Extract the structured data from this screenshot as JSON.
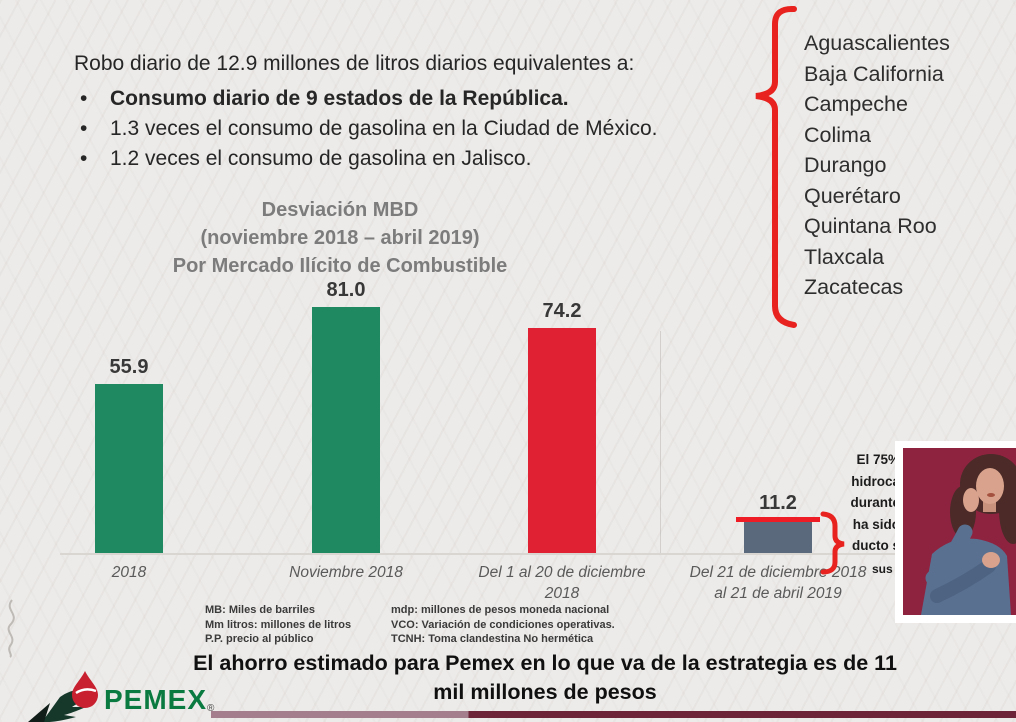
{
  "header": {
    "intro": "Robo diario de 12.9 millones de litros diarios equivalentes a:",
    "bullets": [
      {
        "text": "Consumo diario de 9 estados de la República.",
        "bold": true
      },
      {
        "text": "1.3 veces el consumo de gasolina en la Ciudad de México.",
        "bold": false
      },
      {
        "text": "1.2 veces el consumo de gasolina en Jalisco.",
        "bold": false
      }
    ]
  },
  "states": {
    "items": [
      "Aguascalientes",
      "Baja California",
      "Campeche",
      "Colima",
      "Durango",
      "Querétaro",
      "Quintana Roo",
      "Tlaxcala",
      "Zacatecas"
    ]
  },
  "chart_data": {
    "type": "bar",
    "title": "Desviación MBD",
    "subtitle": "(noviembre 2018 – abril  2019)",
    "subtitle2": "Por Mercado Ilícito de Combustible",
    "categories": [
      "2018",
      "Noviembre 2018",
      "Del 1 al 20 de diciembre 2018",
      "Del 21 de diciembre 2018 al 21 de abril 2019"
    ],
    "category_lines": [
      [
        "2018"
      ],
      [
        "Noviembre 2018"
      ],
      [
        "Del 1 al 20 de diciembre",
        "2018"
      ],
      [
        "Del 21 de diciembre 2018",
        "al 21 de abril 2019"
      ]
    ],
    "values": [
      55.9,
      81.0,
      74.2,
      11.2
    ],
    "value_labels": [
      "55.9",
      "81.0",
      "74.2",
      "11.2"
    ],
    "bar_colors": [
      "#1f8a62",
      "#1f8a62",
      "#df2133",
      "#5a6a7c"
    ],
    "ylim": [
      0,
      90
    ],
    "grid": false,
    "legend": false,
    "units": "MBD",
    "annotations": [
      {
        "target": "bar-4",
        "type": "highlight-line",
        "color": "#ee1c25"
      },
      {
        "target": "bar-4",
        "type": "brace-right",
        "color": "#e8231f"
      },
      {
        "target": "states-list",
        "type": "brace-left",
        "color": "#e8231f"
      }
    ]
  },
  "side_note": {
    "visible_fragments": [
      "El 75%",
      "hidroca",
      "durante",
      "ha sido",
      "ducto s"
    ],
    "superscript_fragment": "sus"
  },
  "footnotes": {
    "left": [
      "MB: Miles de barriles",
      "Mm litros: millones de litros",
      "P.P. precio al público"
    ],
    "right": [
      "mdp: millones de pesos moneda nacional",
      "VCO: Variación de condiciones operativas.",
      "TCNH: Toma clandestina No hermética"
    ]
  },
  "statement": {
    "lines": [
      "El ahorro estimado para Pemex en lo que va de la estrategia es de 11",
      "mil millones de pesos"
    ]
  },
  "logo": {
    "text": "PEMEX",
    "registered": "®"
  },
  "colors": {
    "background": "#edebe9",
    "green_bar": "#1f8a62",
    "red_bar": "#df2133",
    "gray_bar": "#5a6a7c",
    "bracket_red": "#e8231f",
    "title_gray": "#7c7c7c",
    "video_bg": "#8e2340",
    "strip_left": "#a57e8e",
    "strip_right": "#6e2438",
    "pemex_green": "#0a7a40"
  }
}
